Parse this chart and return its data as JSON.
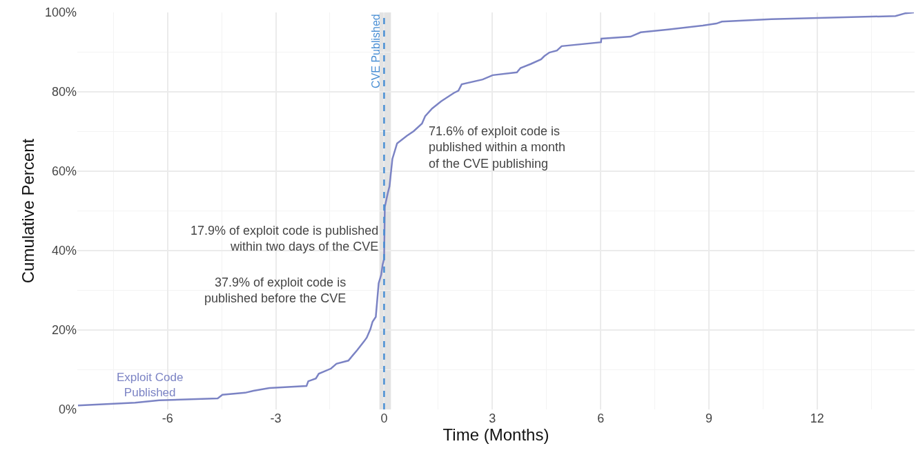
{
  "chart_data": {
    "type": "line",
    "xlabel": "Time (Months)",
    "ylabel": "Cumulative Percent",
    "x": [
      -8.48,
      -6.9,
      -6.23,
      -4.61,
      -4.48,
      -3.85,
      -3.62,
      -3.18,
      -2.15,
      -2.1,
      -1.89,
      -1.81,
      -1.47,
      -1.32,
      -0.99,
      -0.74,
      -0.55,
      -0.48,
      -0.38,
      -0.32,
      -0.23,
      -0.15,
      -0.08,
      -0.04,
      0,
      0.02,
      0.1,
      0.15,
      0.23,
      0.36,
      0.63,
      0.82,
      1.05,
      1.14,
      1.33,
      1.58,
      1.93,
      2.06,
      2.15,
      2.73,
      3.01,
      3.68,
      3.78,
      4.06,
      4.35,
      4.44,
      4.58,
      4.79,
      4.92,
      6.01,
      6.02,
      6.83,
      7.11,
      7.87,
      8.83,
      9.21,
      9.36,
      10.73,
      14.17,
      14.45,
      14.68
    ],
    "series": [
      {
        "name": "Exploit Code Published",
        "color": "#7b83c4",
        "values": [
          1.0,
          1.7,
          2.3,
          2.8,
          3.7,
          4.2,
          4.7,
          5.4,
          5.9,
          7.1,
          7.8,
          9.0,
          10.3,
          11.5,
          12.3,
          15.0,
          17.2,
          18.1,
          20.2,
          22.1,
          23.3,
          31.8,
          33.9,
          36.5,
          37.9,
          51,
          54.4,
          56.2,
          63.1,
          67.0,
          68.9,
          70.1,
          72,
          73.9,
          75.8,
          77.6,
          79.7,
          80.3,
          81.9,
          83.1,
          84.2,
          84.9,
          86.0,
          87.0,
          88.2,
          89.0,
          89.9,
          90.4,
          91.5,
          92.5,
          93.4,
          93.9,
          95.0,
          95.7,
          96.7,
          97.2,
          97.7,
          98.3,
          99.1,
          99.8,
          100
        ]
      }
    ],
    "xlim": [
      -8.5,
      14.7
    ],
    "xticks": [
      -6,
      -3,
      0,
      3,
      6,
      9,
      12
    ],
    "ylim": [
      0,
      100
    ],
    "yticks": [
      {
        "value": 0,
        "label": "0%"
      },
      {
        "value": 20,
        "label": "20%"
      },
      {
        "value": 40,
        "label": "40%"
      },
      {
        "value": 60,
        "label": "60%"
      },
      {
        "value": 80,
        "label": "80%"
      },
      {
        "value": 100,
        "label": "100%"
      }
    ],
    "ref_lines": [
      {
        "axis": "x",
        "value": 0,
        "label": "CVE Published",
        "color": "#4a8fd4",
        "line_style": "dashed"
      }
    ],
    "bands": [
      {
        "axis": "x",
        "from": -0.13,
        "to": 0.19,
        "color": "#e3e3e3"
      }
    ],
    "annotations": [
      "71.6% of exploit code is\npublished within a month\nof the CVE publishing",
      {
        "text": "17.9% of exploit code is published\nwithin two days of the CVE",
        "x": -0.13,
        "y": 43
      },
      "37.9% of exploit code is\npublished before the CVE"
    ],
    "grid": true,
    "legend": false,
    "marker": "none",
    "line_style": "solid"
  }
}
